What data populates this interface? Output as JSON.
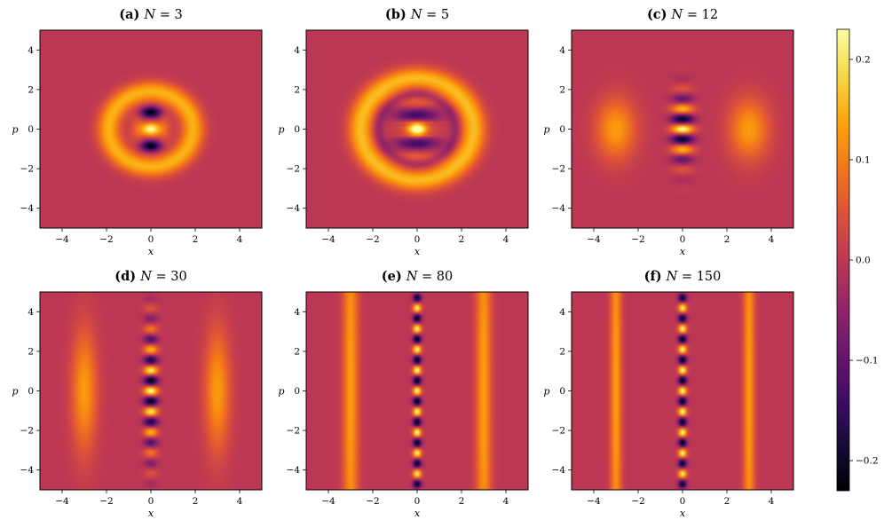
{
  "figure": {
    "colormap": "inferno",
    "background_value_color": "#bf3650"
  },
  "chart_data": [
    {
      "type": "heatmap",
      "panel": "a",
      "title_prefix": "(a)",
      "title_math": "N = 3",
      "N": 3,
      "xlabel": "x",
      "ylabel": "p",
      "xlim": [
        -5,
        5
      ],
      "ylim": [
        -5,
        5
      ],
      "xticks": [
        -4,
        -2,
        0,
        2,
        4
      ],
      "yticks": [
        -4,
        -2,
        0,
        2,
        4
      ],
      "vrange": [
        -0.23,
        0.23
      ]
    },
    {
      "type": "heatmap",
      "panel": "b",
      "title_prefix": "(b)",
      "title_math": "N = 5",
      "N": 5,
      "xlabel": "x",
      "ylabel": "p",
      "xlim": [
        -5,
        5
      ],
      "ylim": [
        -5,
        5
      ],
      "xticks": [
        -4,
        -2,
        0,
        2,
        4
      ],
      "yticks": [
        -4,
        -2,
        0,
        2,
        4
      ],
      "vrange": [
        -0.23,
        0.23
      ]
    },
    {
      "type": "heatmap",
      "panel": "c",
      "title_prefix": "(c)",
      "title_math": "N = 12",
      "N": 12,
      "xlabel": "x",
      "ylabel": "p",
      "xlim": [
        -5,
        5
      ],
      "ylim": [
        -5,
        5
      ],
      "xticks": [
        -4,
        -2,
        0,
        2,
        4
      ],
      "yticks": [
        -4,
        -2,
        0,
        2,
        4
      ],
      "vrange": [
        -0.23,
        0.23
      ]
    },
    {
      "type": "heatmap",
      "panel": "d",
      "title_prefix": "(d)",
      "title_math": "N = 30",
      "N": 30,
      "xlabel": "x",
      "ylabel": "p",
      "xlim": [
        -5,
        5
      ],
      "ylim": [
        -5,
        5
      ],
      "xticks": [
        -4,
        -2,
        0,
        2,
        4
      ],
      "yticks": [
        -4,
        -2,
        0,
        2,
        4
      ],
      "vrange": [
        -0.23,
        0.23
      ]
    },
    {
      "type": "heatmap",
      "panel": "e",
      "title_prefix": "(e)",
      "title_math": "N = 80",
      "N": 80,
      "xlabel": "x",
      "ylabel": "p",
      "xlim": [
        -5,
        5
      ],
      "ylim": [
        -5,
        5
      ],
      "xticks": [
        -4,
        -2,
        0,
        2,
        4
      ],
      "yticks": [
        -4,
        -2,
        0,
        2,
        4
      ],
      "vrange": [
        -0.23,
        0.23
      ]
    },
    {
      "type": "heatmap",
      "panel": "f",
      "title_prefix": "(f)",
      "title_math": "N = 150",
      "N": 150,
      "xlabel": "x",
      "ylabel": "p",
      "xlim": [
        -5,
        5
      ],
      "ylim": [
        -5,
        5
      ],
      "xticks": [
        -4,
        -2,
        0,
        2,
        4
      ],
      "yticks": [
        -4,
        -2,
        0,
        2,
        4
      ],
      "vrange": [
        -0.23,
        0.23
      ]
    }
  ],
  "colorbar": {
    "vmin": -0.23,
    "vmax": 0.23,
    "ticks": [
      -0.2,
      -0.1,
      0.0,
      0.1,
      0.2
    ],
    "ticklabels": [
      "−0.2",
      "−0.1",
      "0.0",
      "0.1",
      "0.2"
    ]
  }
}
